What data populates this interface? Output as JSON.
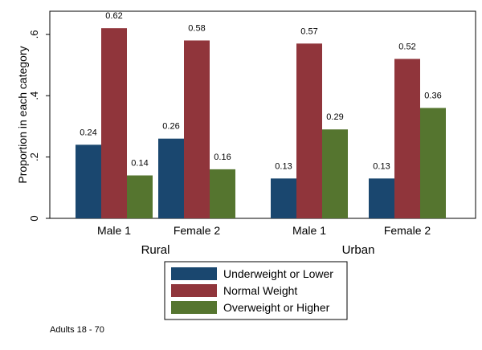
{
  "chart_data": {
    "type": "bar",
    "ylabel": "Proportion in each category",
    "ylim": [
      0,
      0.66
    ],
    "yticks": [
      {
        "value": 0,
        "label": "0"
      },
      {
        "value": 0.2,
        "label": ".2"
      },
      {
        "value": 0.4,
        "label": ".4"
      },
      {
        "value": 0.6,
        "label": ".6"
      }
    ],
    "groups": [
      {
        "name": "Rural",
        "categories": [
          "Male 1",
          "Female 2"
        ]
      },
      {
        "name": "Urban",
        "categories": [
          "Male 1",
          "Female 2"
        ]
      }
    ],
    "series": [
      {
        "name": "Underweight or Lower",
        "color": "#1a476f",
        "values": [
          0.24,
          0.26,
          0.13,
          0.13
        ],
        "labels": [
          "0.24",
          "0.26",
          "0.13",
          "0.13"
        ]
      },
      {
        "name": "Normal Weight",
        "color": "#90353b",
        "values": [
          0.62,
          0.58,
          0.57,
          0.52
        ],
        "labels": [
          "0.62",
          "0.58",
          "0.57",
          "0.52"
        ]
      },
      {
        "name": "Overweight or Higher",
        "color": "#55752f",
        "values": [
          0.14,
          0.16,
          0.29,
          0.36
        ],
        "labels": [
          "0.14",
          "0.16",
          "0.29",
          "0.36"
        ]
      }
    ],
    "legend_position": "bottom",
    "note": "Adults 18 - 70"
  }
}
